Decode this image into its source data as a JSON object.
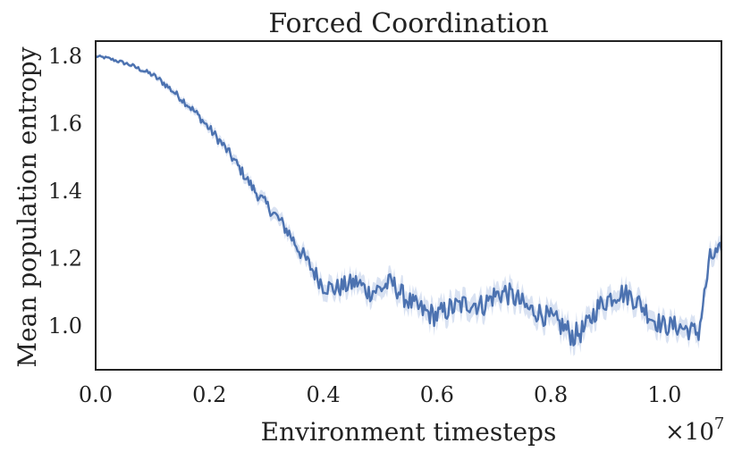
{
  "chart_data": {
    "type": "line",
    "title": "Forced Coordination",
    "xlabel": "Environment timesteps",
    "ylabel": "Mean population entropy",
    "x_multiplier": "×10",
    "x_multiplier_exp": "7",
    "xlim": [
      0.0,
      1.1
    ],
    "ylim": [
      0.87,
      1.845
    ],
    "xticks": [
      0.0,
      0.2,
      0.4,
      0.6,
      0.8,
      1.0
    ],
    "xtick_labels": [
      "0.0",
      "0.2",
      "0.4",
      "0.6",
      "0.8",
      "1.0"
    ],
    "yticks": [
      1.0,
      1.2,
      1.4,
      1.6,
      1.8
    ],
    "ytick_labels": [
      "1.0",
      "1.2",
      "1.4",
      "1.6",
      "1.8"
    ],
    "grid": false,
    "line_color": "#4c72b0",
    "band_color": "#c9d6ec",
    "series": [
      {
        "x": [
          0.0,
          0.02,
          0.04,
          0.06,
          0.08,
          0.1,
          0.12,
          0.14,
          0.16,
          0.18,
          0.2,
          0.22,
          0.24,
          0.26,
          0.28,
          0.3,
          0.32,
          0.34,
          0.36,
          0.38,
          0.4,
          0.42,
          0.44,
          0.46,
          0.48,
          0.5,
          0.52,
          0.54,
          0.56,
          0.58,
          0.6,
          0.62,
          0.64,
          0.66,
          0.68,
          0.7,
          0.72,
          0.74,
          0.76,
          0.78,
          0.8,
          0.82,
          0.84,
          0.86,
          0.88,
          0.9,
          0.92,
          0.94,
          0.96,
          0.98,
          1.0,
          1.02,
          1.04,
          1.06,
          1.08,
          1.1
        ],
        "y": [
          1.8,
          1.795,
          1.785,
          1.775,
          1.76,
          1.745,
          1.72,
          1.69,
          1.66,
          1.625,
          1.585,
          1.545,
          1.5,
          1.45,
          1.4,
          1.36,
          1.32,
          1.275,
          1.22,
          1.17,
          1.12,
          1.11,
          1.12,
          1.13,
          1.1,
          1.11,
          1.13,
          1.09,
          1.06,
          1.04,
          1.03,
          1.05,
          1.06,
          1.07,
          1.06,
          1.09,
          1.1,
          1.08,
          1.05,
          1.04,
          1.02,
          1.0,
          0.97,
          0.99,
          1.05,
          1.08,
          1.1,
          1.09,
          1.06,
          1.02,
          1.0,
          1.0,
          0.99,
          0.98,
          1.2,
          1.225
        ],
        "noise": [
          0.004,
          0.004,
          0.005,
          0.006,
          0.006,
          0.008,
          0.01,
          0.01,
          0.012,
          0.012,
          0.014,
          0.015,
          0.016,
          0.016,
          0.018,
          0.018,
          0.02,
          0.022,
          0.024,
          0.026,
          0.028,
          0.028,
          0.03,
          0.03,
          0.03,
          0.03,
          0.03,
          0.032,
          0.032,
          0.034,
          0.034,
          0.034,
          0.034,
          0.034,
          0.034,
          0.034,
          0.034,
          0.034,
          0.032,
          0.032,
          0.034,
          0.036,
          0.036,
          0.034,
          0.034,
          0.034,
          0.032,
          0.032,
          0.032,
          0.032,
          0.03,
          0.03,
          0.03,
          0.03,
          0.03,
          0.026
        ]
      }
    ]
  }
}
